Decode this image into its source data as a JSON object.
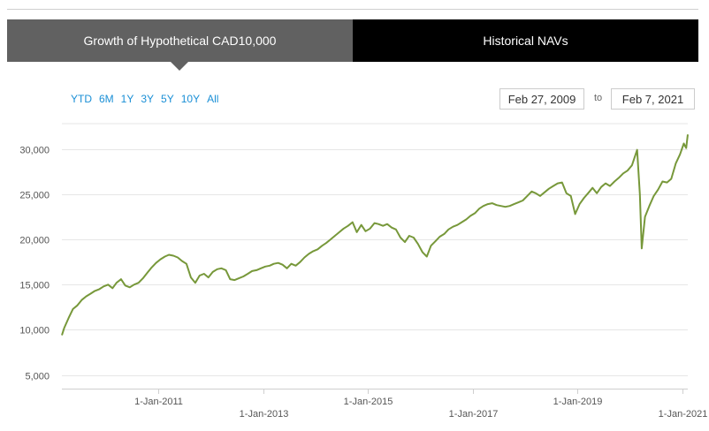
{
  "tabs": [
    {
      "label": "Growth of Hypothetical CAD10,000",
      "active": true
    },
    {
      "label": "Historical NAVs",
      "active": false
    }
  ],
  "range_buttons": [
    "YTD",
    "6M",
    "1Y",
    "3Y",
    "5Y",
    "10Y",
    "All"
  ],
  "date_range": {
    "from": "Feb 27, 2009",
    "to_label": "to",
    "to": "Feb 7, 2021"
  },
  "colors": {
    "line": "#77983a",
    "grid": "#e6e6e6",
    "link": "#1a8fd6",
    "active_tab": "#616161",
    "inactive_tab": "#000000"
  },
  "chart_data": {
    "type": "line",
    "title": "",
    "xlabel": "",
    "ylabel": "",
    "ylim": [
      3500,
      32800
    ],
    "xlim": [
      "2009-02-27",
      "2021-02-07"
    ],
    "y_ticks": [
      {
        "value": 5000,
        "label": "5,000"
      },
      {
        "value": 10000,
        "label": "10,000"
      },
      {
        "value": 15000,
        "label": "15,000"
      },
      {
        "value": 20000,
        "label": "20,000"
      },
      {
        "value": 25000,
        "label": "25,000"
      },
      {
        "value": 30000,
        "label": "30,000"
      }
    ],
    "x_ticks": [
      {
        "date": "2011-01-01",
        "label": "1-Jan-2011",
        "row": 1
      },
      {
        "date": "2013-01-01",
        "label": "1-Jan-2013",
        "row": 2
      },
      {
        "date": "2015-01-01",
        "label": "1-Jan-2015",
        "row": 1
      },
      {
        "date": "2017-01-01",
        "label": "1-Jan-2017",
        "row": 2
      },
      {
        "date": "2019-01-01",
        "label": "1-Jan-2019",
        "row": 1
      },
      {
        "date": "2021-01-01",
        "label": "1-Jan-2021",
        "row": 2
      }
    ],
    "grid": true,
    "series": [
      {
        "color": "#77983a",
        "points": [
          [
            "2009-02-27",
            9400
          ],
          [
            "2009-03-15",
            10200
          ],
          [
            "2009-04-15",
            11300
          ],
          [
            "2009-05-15",
            12300
          ],
          [
            "2009-06-15",
            12700
          ],
          [
            "2009-07-15",
            13300
          ],
          [
            "2009-08-15",
            13700
          ],
          [
            "2009-09-15",
            14000
          ],
          [
            "2009-10-15",
            14300
          ],
          [
            "2009-11-15",
            14500
          ],
          [
            "2009-12-15",
            14800
          ],
          [
            "2010-01-15",
            15000
          ],
          [
            "2010-02-15",
            14600
          ],
          [
            "2010-03-15",
            15200
          ],
          [
            "2010-04-15",
            15600
          ],
          [
            "2010-05-15",
            14900
          ],
          [
            "2010-06-15",
            14700
          ],
          [
            "2010-07-15",
            15000
          ],
          [
            "2010-08-15",
            15200
          ],
          [
            "2010-09-15",
            15700
          ],
          [
            "2010-10-15",
            16300
          ],
          [
            "2010-11-15",
            16900
          ],
          [
            "2010-12-15",
            17400
          ],
          [
            "2011-01-15",
            17800
          ],
          [
            "2011-02-15",
            18100
          ],
          [
            "2011-03-15",
            18300
          ],
          [
            "2011-04-15",
            18200
          ],
          [
            "2011-05-15",
            18000
          ],
          [
            "2011-06-15",
            17600
          ],
          [
            "2011-07-15",
            17300
          ],
          [
            "2011-08-15",
            15800
          ],
          [
            "2011-09-15",
            15200
          ],
          [
            "2011-10-15",
            16000
          ],
          [
            "2011-11-15",
            16200
          ],
          [
            "2011-12-15",
            15800
          ],
          [
            "2012-01-15",
            16400
          ],
          [
            "2012-02-15",
            16700
          ],
          [
            "2012-03-15",
            16800
          ],
          [
            "2012-04-15",
            16600
          ],
          [
            "2012-05-15",
            15600
          ],
          [
            "2012-06-15",
            15500
          ],
          [
            "2012-07-15",
            15700
          ],
          [
            "2012-08-15",
            15900
          ],
          [
            "2012-09-15",
            16200
          ],
          [
            "2012-10-15",
            16500
          ],
          [
            "2012-11-15",
            16600
          ],
          [
            "2012-12-15",
            16800
          ],
          [
            "2013-01-15",
            17000
          ],
          [
            "2013-02-15",
            17100
          ],
          [
            "2013-03-15",
            17300
          ],
          [
            "2013-04-15",
            17400
          ],
          [
            "2013-05-15",
            17200
          ],
          [
            "2013-06-15",
            16800
          ],
          [
            "2013-07-15",
            17300
          ],
          [
            "2013-08-15",
            17100
          ],
          [
            "2013-09-15",
            17500
          ],
          [
            "2013-10-15",
            18000
          ],
          [
            "2013-11-15",
            18400
          ],
          [
            "2013-12-15",
            18700
          ],
          [
            "2014-01-15",
            18900
          ],
          [
            "2014-02-15",
            19300
          ],
          [
            "2014-03-15",
            19600
          ],
          [
            "2014-04-15",
            20000
          ],
          [
            "2014-05-15",
            20400
          ],
          [
            "2014-06-15",
            20800
          ],
          [
            "2014-07-15",
            21200
          ],
          [
            "2014-08-15",
            21500
          ],
          [
            "2014-09-15",
            21900
          ],
          [
            "2014-10-15",
            20800
          ],
          [
            "2014-11-15",
            21600
          ],
          [
            "2014-12-15",
            20900
          ],
          [
            "2015-01-15",
            21200
          ],
          [
            "2015-02-15",
            21800
          ],
          [
            "2015-03-15",
            21700
          ],
          [
            "2015-04-15",
            21500
          ],
          [
            "2015-05-15",
            21700
          ],
          [
            "2015-06-15",
            21300
          ],
          [
            "2015-07-15",
            21100
          ],
          [
            "2015-08-15",
            20200
          ],
          [
            "2015-09-15",
            19700
          ],
          [
            "2015-10-15",
            20400
          ],
          [
            "2015-11-15",
            20200
          ],
          [
            "2015-12-15",
            19500
          ],
          [
            "2016-01-15",
            18600
          ],
          [
            "2016-02-15",
            18100
          ],
          [
            "2016-03-15",
            19300
          ],
          [
            "2016-04-15",
            19800
          ],
          [
            "2016-05-15",
            20300
          ],
          [
            "2016-06-15",
            20600
          ],
          [
            "2016-07-15",
            21100
          ],
          [
            "2016-08-15",
            21400
          ],
          [
            "2016-09-15",
            21600
          ],
          [
            "2016-10-15",
            21900
          ],
          [
            "2016-11-15",
            22200
          ],
          [
            "2016-12-15",
            22600
          ],
          [
            "2017-01-15",
            22900
          ],
          [
            "2017-02-15",
            23400
          ],
          [
            "2017-03-15",
            23700
          ],
          [
            "2017-04-15",
            23900
          ],
          [
            "2017-05-15",
            24000
          ],
          [
            "2017-06-15",
            23800
          ],
          [
            "2017-07-15",
            23700
          ],
          [
            "2017-08-15",
            23600
          ],
          [
            "2017-09-15",
            23700
          ],
          [
            "2017-10-15",
            23900
          ],
          [
            "2017-11-15",
            24100
          ],
          [
            "2017-12-15",
            24300
          ],
          [
            "2018-01-15",
            24800
          ],
          [
            "2018-02-15",
            25300
          ],
          [
            "2018-03-15",
            25100
          ],
          [
            "2018-04-15",
            24800
          ],
          [
            "2018-05-15",
            25200
          ],
          [
            "2018-06-15",
            25600
          ],
          [
            "2018-07-15",
            25900
          ],
          [
            "2018-08-15",
            26200
          ],
          [
            "2018-09-15",
            26300
          ],
          [
            "2018-10-15",
            25100
          ],
          [
            "2018-11-15",
            24800
          ],
          [
            "2018-12-15",
            22800
          ],
          [
            "2019-01-15",
            23900
          ],
          [
            "2019-02-15",
            24600
          ],
          [
            "2019-03-15",
            25100
          ],
          [
            "2019-04-15",
            25700
          ],
          [
            "2019-05-15",
            25100
          ],
          [
            "2019-06-15",
            25800
          ],
          [
            "2019-07-15",
            26200
          ],
          [
            "2019-08-15",
            25900
          ],
          [
            "2019-09-15",
            26400
          ],
          [
            "2019-10-15",
            26800
          ],
          [
            "2019-11-15",
            27300
          ],
          [
            "2019-12-15",
            27600
          ],
          [
            "2020-01-15",
            28200
          ],
          [
            "2020-02-01",
            29000
          ],
          [
            "2020-02-20",
            29900
          ],
          [
            "2020-03-10",
            25000
          ],
          [
            "2020-03-23",
            19000
          ],
          [
            "2020-04-15",
            22500
          ],
          [
            "2020-05-15",
            23700
          ],
          [
            "2020-06-15",
            24800
          ],
          [
            "2020-07-15",
            25500
          ],
          [
            "2020-08-15",
            26400
          ],
          [
            "2020-09-15",
            26300
          ],
          [
            "2020-10-15",
            26700
          ],
          [
            "2020-11-15",
            28400
          ],
          [
            "2020-12-15",
            29400
          ],
          [
            "2021-01-10",
            30600
          ],
          [
            "2021-01-27",
            30100
          ],
          [
            "2021-02-07",
            31600
          ]
        ]
      }
    ]
  }
}
